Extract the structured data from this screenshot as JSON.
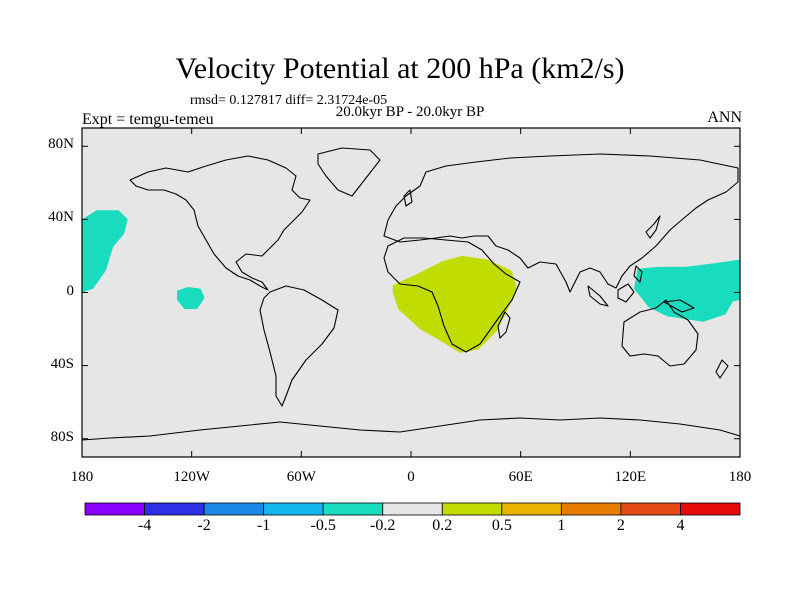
{
  "header": {
    "title": "Velocity Potential at 200 hPa (km2/s)",
    "stats": "rmsd= 0.127817 diff= 2.31724e-05",
    "period": "20.0kyr BP - 20.0kyr BP",
    "experiment": "Expt = temgu-temeu",
    "season": "ANN"
  },
  "map": {
    "projection": "cylindrical equidistant",
    "lon_range": [
      -180,
      180
    ],
    "lat_range": [
      -90,
      90
    ],
    "background_color": "#e6e6e6",
    "coastline_color": "#000000",
    "x_ticks": [
      {
        "lon": -180,
        "label": "180"
      },
      {
        "lon": -120,
        "label": "120W"
      },
      {
        "lon": -60,
        "label": "60W"
      },
      {
        "lon": 0,
        "label": "0"
      },
      {
        "lon": 60,
        "label": "60E"
      },
      {
        "lon": 120,
        "label": "120E"
      },
      {
        "lon": 180,
        "label": "180"
      }
    ],
    "y_ticks": [
      {
        "lat": 80,
        "label": "80N"
      },
      {
        "lat": 40,
        "label": "40N"
      },
      {
        "lat": 0,
        "label": "0"
      },
      {
        "lat": -40,
        "label": "40S"
      },
      {
        "lat": -80,
        "label": "80S"
      }
    ],
    "anomaly_regions": [
      {
        "name": "north-pacific-negative",
        "level": "-0.5 to -0.2",
        "color": "#19dbbd",
        "outline": [
          [
            -180,
            40
          ],
          [
            -172,
            45
          ],
          [
            -160,
            45
          ],
          [
            -155,
            40
          ],
          [
            -157,
            32
          ],
          [
            -163,
            25
          ],
          [
            -167,
            12
          ],
          [
            -174,
            2
          ],
          [
            -180,
            0
          ]
        ]
      },
      {
        "name": "east-pacific-negative",
        "level": "-0.5 to -0.2",
        "color": "#19dbbd",
        "outline": [
          [
            -128,
            1
          ],
          [
            -122,
            3
          ],
          [
            -115,
            2
          ],
          [
            -113,
            -3
          ],
          [
            -117,
            -9
          ],
          [
            -124,
            -9
          ],
          [
            -128,
            -4
          ]
        ]
      },
      {
        "name": "west-pacific-negative",
        "level": "-0.5 to -0.2",
        "color": "#19dbbd",
        "outline": [
          [
            180,
            18
          ],
          [
            166,
            16
          ],
          [
            150,
            14
          ],
          [
            135,
            14
          ],
          [
            124,
            13
          ],
          [
            122,
            2
          ],
          [
            130,
            -8
          ],
          [
            140,
            -13
          ],
          [
            160,
            -16
          ],
          [
            172,
            -12
          ],
          [
            176,
            -5
          ],
          [
            180,
            -4
          ]
        ]
      },
      {
        "name": "africa-positive",
        "level": "0.2 to 0.5",
        "color": "#c0dc00",
        "outline": [
          [
            -10,
            4
          ],
          [
            3,
            10
          ],
          [
            17,
            17
          ],
          [
            28,
            20
          ],
          [
            42,
            18
          ],
          [
            55,
            12
          ],
          [
            58,
            2
          ],
          [
            53,
            -9
          ],
          [
            47,
            -21
          ],
          [
            37,
            -31
          ],
          [
            27,
            -33
          ],
          [
            17,
            -27
          ],
          [
            5,
            -20
          ],
          [
            -7,
            -9
          ],
          [
            -10,
            0
          ]
        ]
      }
    ]
  },
  "colorbar": {
    "colors": [
      "#8a00ff",
      "#2f2fe6",
      "#1c88e6",
      "#14b6f0",
      "#19dbbd",
      "#e6e6e6",
      "#c0dc00",
      "#e8b400",
      "#e67c00",
      "#e64a14",
      "#e60a0a"
    ],
    "labels": [
      "-4",
      "-2",
      "-1",
      "-0.5",
      "-0.2",
      "0.2",
      "0.5",
      "1",
      "2",
      "4"
    ]
  }
}
